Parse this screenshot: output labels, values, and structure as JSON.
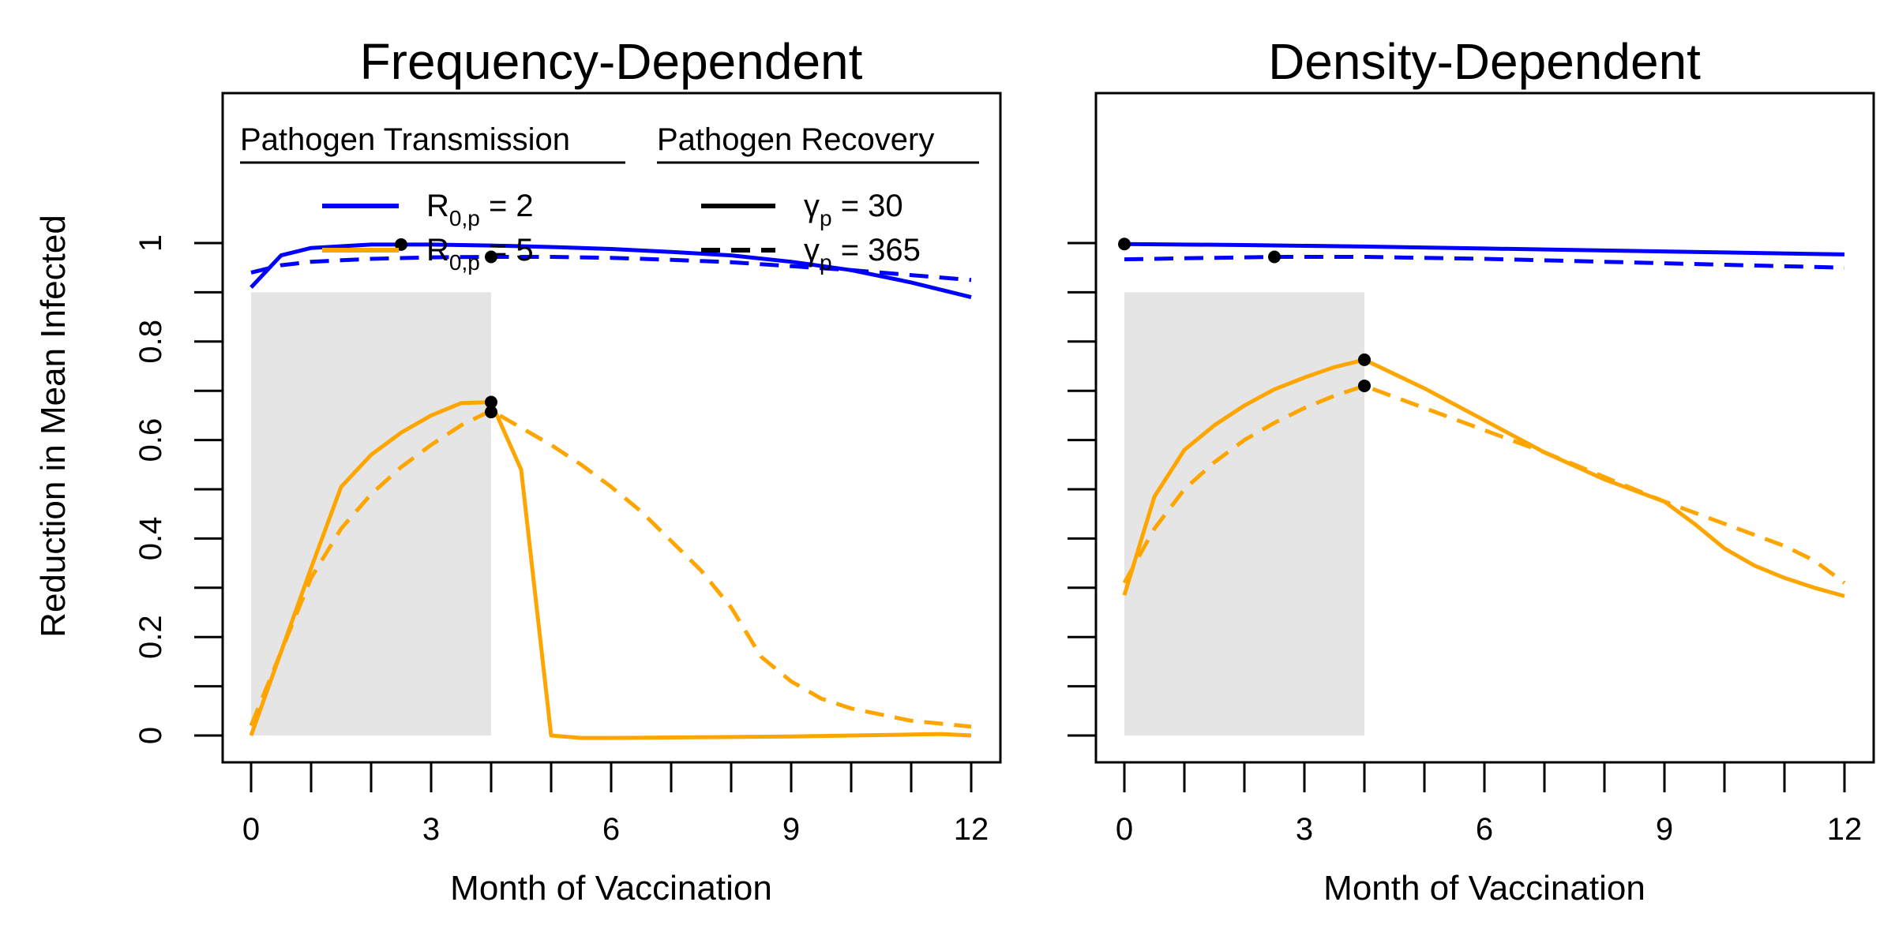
{
  "figure": {
    "ylabel": "Reduction in Mean Infected",
    "shaded_region": [
      0,
      4
    ],
    "y_ticks": [
      0,
      0.2,
      0.4,
      0.6,
      0.8,
      1
    ],
    "y_tick_labels": [
      "0",
      "0.2",
      "0.4",
      "0.6",
      "0.8",
      "1"
    ],
    "x_ticks_labeled": [
      0,
      3,
      6,
      9,
      12
    ],
    "x_tick_labels": [
      "0",
      "3",
      "6",
      "9",
      "12"
    ],
    "x_ticks_minor": [
      0,
      1,
      2,
      3,
      4,
      5,
      6,
      7,
      8,
      9,
      10,
      11,
      12
    ]
  },
  "legend": {
    "transmission_title": "Pathogen Transmission",
    "recovery_title": "Pathogen Recovery",
    "r0_low_prefix": "R",
    "r0_low_sub": "0,p",
    "r0_low_value": " = 2",
    "r0_high_prefix": "R",
    "r0_high_sub": "0,p",
    "r0_high_value": " = 5",
    "gamma_short_prefix": "γ",
    "gamma_short_sub": "p",
    "gamma_short_value": " = 30",
    "gamma_long_prefix": "γ",
    "gamma_long_sub": "p",
    "gamma_long_value": " = 365"
  },
  "colors": {
    "r0_2": "#0000ff",
    "r0_5": "#ffa500",
    "shade": "#e5e5e5",
    "marker": "#000000"
  },
  "chart_data": [
    {
      "type": "line",
      "title": "Frequency-Dependent",
      "xlabel": "Month of Vaccination",
      "ylabel": "Reduction in Mean Infected",
      "xlim": [
        0,
        12
      ],
      "ylim": [
        0,
        1
      ],
      "series": [
        {
          "name": "R0,p = 2, γp = 30",
          "color": "#0000ff",
          "dash": "solid",
          "x": [
            0,
            0.5,
            1,
            2,
            3,
            4,
            5,
            6,
            7,
            8,
            9,
            10,
            11,
            12
          ],
          "y": [
            0.91,
            0.975,
            0.99,
            0.997,
            0.997,
            0.995,
            0.992,
            0.988,
            0.982,
            0.975,
            0.962,
            0.945,
            0.92,
            0.89
          ],
          "markers": [
            {
              "x": 2.5,
              "y": 0.997
            }
          ]
        },
        {
          "name": "R0,p = 2, γp = 365",
          "color": "#0000ff",
          "dash": "dashed",
          "x": [
            0,
            0.5,
            1,
            2,
            3,
            4,
            5,
            6,
            7,
            8,
            9,
            10,
            11,
            12
          ],
          "y": [
            0.94,
            0.955,
            0.962,
            0.968,
            0.971,
            0.972,
            0.972,
            0.97,
            0.966,
            0.961,
            0.953,
            0.945,
            0.935,
            0.925
          ],
          "markers": [
            {
              "x": 4,
              "y": 0.972
            }
          ]
        },
        {
          "name": "R0,p = 5, γp = 30",
          "color": "#ffa500",
          "dash": "solid",
          "x": [
            0,
            0.5,
            1,
            1.5,
            2,
            2.5,
            3,
            3.5,
            4,
            4.5,
            5,
            5.5,
            6,
            7,
            8,
            9,
            10,
            11,
            11.5,
            12
          ],
          "y": [
            0,
            0.17,
            0.34,
            0.505,
            0.57,
            0.615,
            0.65,
            0.675,
            0.677,
            0.54,
            0,
            -0.005,
            -0.005,
            -0.004,
            -0.003,
            -0.002,
            0,
            0.002,
            0.003,
            0
          ],
          "markers": [
            {
              "x": 4,
              "y": 0.677
            }
          ]
        },
        {
          "name": "R0,p = 5, γp = 365",
          "color": "#ffa500",
          "dash": "dashed",
          "x": [
            0,
            0.5,
            1,
            1.5,
            2,
            2.5,
            3,
            3.5,
            4,
            4.5,
            5,
            5.5,
            6,
            6.5,
            7,
            7.5,
            8,
            8.5,
            9,
            9.5,
            10,
            11,
            12
          ],
          "y": [
            0.02,
            0.17,
            0.32,
            0.42,
            0.49,
            0.545,
            0.59,
            0.63,
            0.66,
            0.625,
            0.59,
            0.55,
            0.505,
            0.455,
            0.395,
            0.335,
            0.26,
            0.16,
            0.11,
            0.075,
            0.055,
            0.03,
            0.018
          ],
          "markers": [
            {
              "x": 4,
              "y": 0.657
            }
          ]
        }
      ]
    },
    {
      "type": "line",
      "title": "Density-Dependent",
      "xlabel": "Month of Vaccination",
      "ylabel": "",
      "xlim": [
        0,
        12
      ],
      "ylim": [
        0,
        1
      ],
      "series": [
        {
          "name": "R0,p = 2, γp = 30",
          "color": "#0000ff",
          "dash": "solid",
          "x": [
            0,
            2,
            4,
            6,
            8,
            10,
            12
          ],
          "y": [
            0.998,
            0.996,
            0.993,
            0.989,
            0.985,
            0.981,
            0.977
          ],
          "markers": [
            {
              "x": 0,
              "y": 0.998
            }
          ]
        },
        {
          "name": "R0,p = 2, γp = 365",
          "color": "#0000ff",
          "dash": "dashed",
          "x": [
            0,
            1,
            2.5,
            4,
            6,
            8,
            10,
            12
          ],
          "y": [
            0.967,
            0.969,
            0.972,
            0.972,
            0.968,
            0.962,
            0.956,
            0.95
          ],
          "markers": [
            {
              "x": 2.5,
              "y": 0.972
            }
          ]
        },
        {
          "name": "R0,p = 5, γp = 30",
          "color": "#ffa500",
          "dash": "solid",
          "x": [
            0,
            0.5,
            1,
            1.5,
            2,
            2.5,
            3,
            3.5,
            4,
            5,
            6,
            7,
            8,
            9,
            9.5,
            10,
            10.5,
            11,
            11.5,
            12
          ],
          "y": [
            0.285,
            0.485,
            0.58,
            0.63,
            0.67,
            0.703,
            0.727,
            0.748,
            0.763,
            0.705,
            0.64,
            0.575,
            0.52,
            0.475,
            0.43,
            0.38,
            0.345,
            0.32,
            0.3,
            0.283
          ],
          "markers": [
            {
              "x": 4,
              "y": 0.763
            }
          ]
        },
        {
          "name": "R0,p = 5, γp = 365",
          "color": "#ffa500",
          "dash": "dashed",
          "x": [
            0,
            0.5,
            1,
            1.5,
            2,
            2.5,
            3,
            3.5,
            4,
            5,
            6,
            7,
            8,
            9,
            10,
            11,
            11.5,
            12
          ],
          "y": [
            0.31,
            0.42,
            0.5,
            0.555,
            0.6,
            0.635,
            0.665,
            0.69,
            0.71,
            0.665,
            0.62,
            0.575,
            0.525,
            0.475,
            0.43,
            0.385,
            0.355,
            0.31
          ],
          "markers": [
            {
              "x": 4,
              "y": 0.71
            }
          ]
        }
      ]
    }
  ]
}
